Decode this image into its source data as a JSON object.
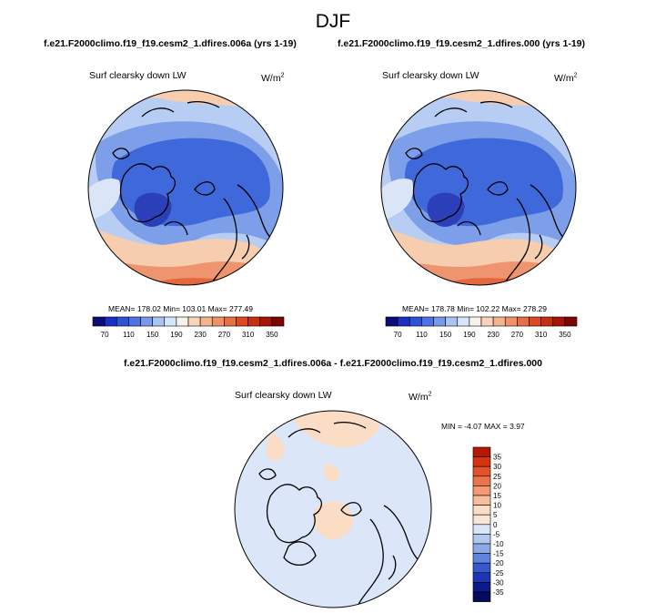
{
  "season": "DJF",
  "panels": {
    "left": {
      "case_title": "f.e21.F2000climo.f19_f19.cesm2_1.dfires.006a (yrs 1-19)",
      "field_label": "Surf clearsky down LW",
      "units_base": "W/m",
      "units_exp": "2",
      "stats": "MEAN= 178.02  Min= 103.01  Max= 277.49"
    },
    "right": {
      "case_title": "f.e21.F2000climo.f19_f19.cesm2_1.dfires.000 (yrs 1-19)",
      "field_label": "Surf clearsky down LW",
      "units_base": "W/m",
      "units_exp": "2",
      "stats": "MEAN= 178.78  Min= 102.22  Max= 278.29"
    },
    "diff": {
      "case_title": "f.e21.F2000climo.f19_f19.cesm2_1.dfires.006a - f.e21.F2000climo.f19_f19.cesm2_1.dfires.000",
      "field_label": "Surf clearsky down LW",
      "units_base": "W/m",
      "units_exp": "2",
      "stats": "MIN = -4.07 MAX =  3.97"
    }
  },
  "colorbar_main": {
    "labels": [
      "70",
      "110",
      "150",
      "190",
      "230",
      "270",
      "310",
      "350"
    ],
    "colors": [
      "#0b0b7a",
      "#1c2fc4",
      "#2e52d6",
      "#4f72e0",
      "#7a98ea",
      "#a9c3f3",
      "#d6e6fa",
      "#f7f2e8",
      "#f8d4bd",
      "#f3b48f",
      "#ee9166",
      "#e86e44",
      "#dc4a22",
      "#c82d11",
      "#a51406",
      "#7a0502"
    ]
  },
  "colorbar_diff": {
    "labels": [
      "35",
      "30",
      "25",
      "20",
      "15",
      "10",
      "5",
      "0",
      "-5",
      "-10",
      "-15",
      "-20",
      "-25",
      "-30",
      "-35"
    ],
    "colors": [
      "#b81706",
      "#d4340f",
      "#e3532b",
      "#ec744d",
      "#f39a74",
      "#f7bd9d",
      "#fbdcc5",
      "#fae6d6",
      "#d9e6f8",
      "#b3c8f0",
      "#8caae6",
      "#5f84dc",
      "#3559cd",
      "#1b37b5",
      "#0c1b8a",
      "#050a5c"
    ]
  },
  "colors": {
    "ocean_blue": "#3f68da",
    "mid_blue": "#7d9ee8",
    "light_blue": "#b8cdf3",
    "pale_blue": "#dae6f8",
    "peach": "#f7cdb0",
    "salmon": "#ee9570",
    "orange": "#e4683f",
    "deep_blue": "#2a3fb8",
    "diff_base": "#dbe7f8",
    "diff_pos": "#fbdcc5"
  }
}
